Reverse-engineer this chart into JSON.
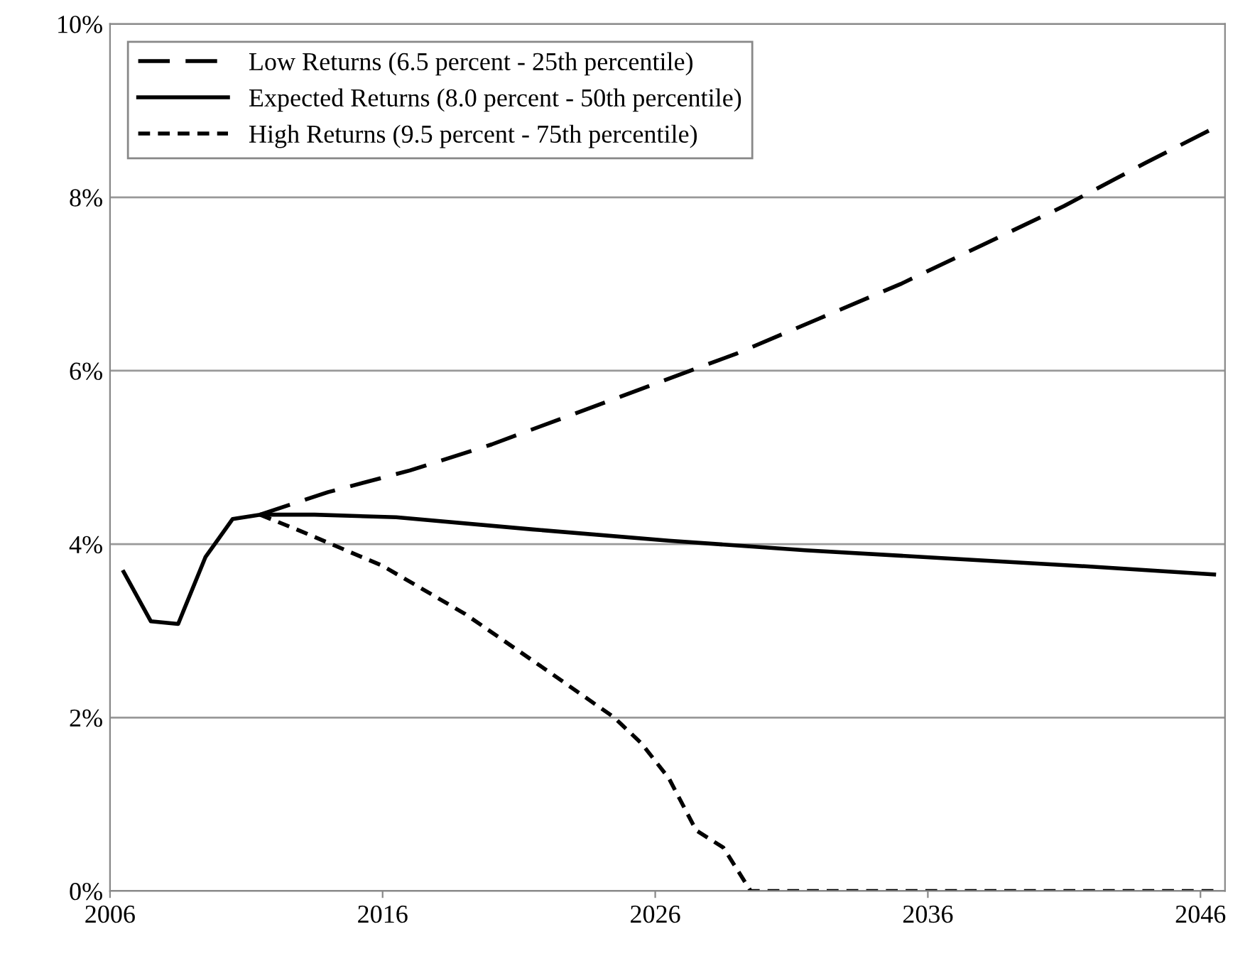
{
  "chart_data": {
    "type": "line",
    "xlim": [
      2006,
      2046.9
    ],
    "xticks": [
      2006,
      2016,
      2026,
      2036,
      2046
    ],
    "ylim": [
      0,
      10
    ],
    "yticks": [
      {
        "value": 0,
        "label": "0%"
      },
      {
        "value": 2,
        "label": "2%"
      },
      {
        "value": 4,
        "label": "4%"
      },
      {
        "value": 6,
        "label": "6%"
      },
      {
        "value": 8,
        "label": "8%"
      },
      {
        "value": 10,
        "label": "10%"
      }
    ],
    "grid": "y",
    "legend": "top left",
    "marker": "none",
    "series": [
      {
        "name": "Low Returns (6.5 percent - 25th percentile)",
        "color": "#000000",
        "line_style": "dashed",
        "x": [
          2011.5,
          2014,
          2017,
          2020,
          2023,
          2026,
          2029,
          2032,
          2035,
          2038,
          2041,
          2044,
          2046.5
        ],
        "values": [
          4.34,
          4.6,
          4.85,
          5.15,
          5.5,
          5.85,
          6.2,
          6.6,
          7.0,
          7.45,
          7.9,
          8.4,
          8.8
        ]
      },
      {
        "name": "Expected Returns (8.0 percent - 50th percentile)",
        "color": "#000000",
        "line_style": "solid",
        "x": [
          2006.5,
          2007.5,
          2008.5,
          2009.5,
          2010.5,
          2011.5,
          2013.5,
          2016.5,
          2021.5,
          2026.5,
          2031.5,
          2036.5,
          2041.5,
          2046.5
        ],
        "values": [
          3.68,
          3.11,
          3.08,
          3.85,
          4.29,
          4.34,
          4.34,
          4.31,
          4.17,
          4.04,
          3.93,
          3.84,
          3.75,
          3.65
        ]
      },
      {
        "name": "High Returns (9.5 percent - 75th percentile)",
        "color": "#000000",
        "line_style": "dotted",
        "x": [
          2011.5,
          2013,
          2016,
          2019,
          2022,
          2024.5,
          2025.5,
          2026.5,
          2027.5,
          2028.5,
          2029.5,
          2046.5
        ],
        "values": [
          4.34,
          4.15,
          3.75,
          3.2,
          2.55,
          2.0,
          1.7,
          1.3,
          0.7,
          0.5,
          0.0,
          0.0
        ]
      }
    ]
  }
}
